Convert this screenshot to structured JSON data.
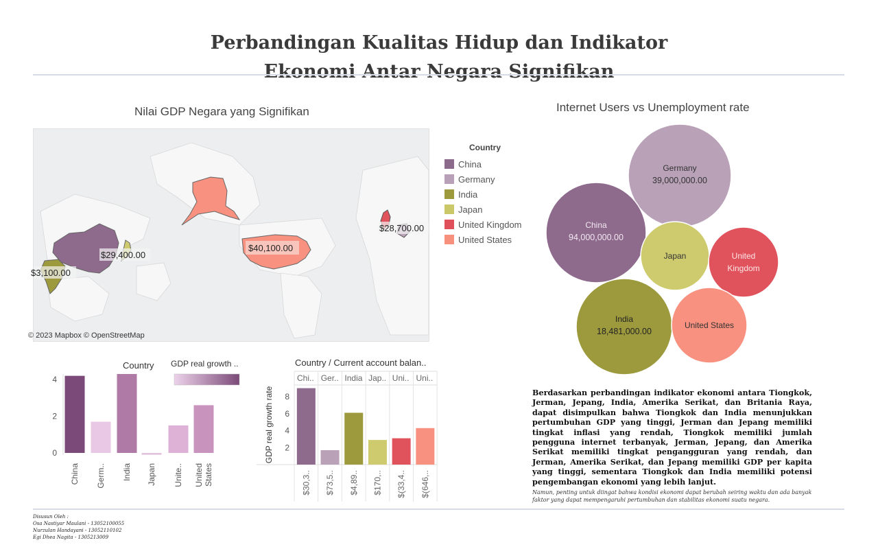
{
  "header": {
    "title_line1": "Perbandingan Kualitas Hidup dan Indikator",
    "title_line2": "Ekonomi Antar Negara Signifikan"
  },
  "map": {
    "title": "Nilai GDP Negara yang Signifikan",
    "attribution": "© 2023 Mapbox © OpenStreetMap",
    "labels": {
      "us": "$40,100.00",
      "uk": "$28,700.00",
      "japan": "$29,400.00",
      "india": "$3,100.00"
    }
  },
  "legend": {
    "title": "Country",
    "items": [
      {
        "label": "China",
        "color": "#8b6a8b"
      },
      {
        "label": "Germany",
        "color": "#b8a0b8"
      },
      {
        "label": "India",
        "color": "#9c9a3c"
      },
      {
        "label": "Japan",
        "color": "#cbc86a"
      },
      {
        "label": "United Kingdom",
        "color": "#e0505a"
      },
      {
        "label": "United States",
        "color": "#f8907e"
      }
    ]
  },
  "bubble_chart": {
    "title": "Internet Users vs Unemployment rate",
    "bubbles": [
      {
        "name": "Germany",
        "value": "39,000,000.00",
        "color": "#b9a1b8",
        "text_color": "#333"
      },
      {
        "name": "China",
        "value": "94,000,000.00",
        "color": "#8e6a8c",
        "text_color": "#f2e8f2"
      },
      {
        "name": "Japan",
        "value": "",
        "color": "#cecb6e",
        "text_color": "#333"
      },
      {
        "name": "United Kingdom",
        "label_line1": "United",
        "label_line2": "Kingdom",
        "value": "",
        "color": "#e0525c",
        "text_color": "#fde6e6"
      },
      {
        "name": "India",
        "value": "18,481,000.00",
        "color": "#9d9a3d",
        "text_color": "#222"
      },
      {
        "name": "United States",
        "value": "",
        "color": "#f8917f",
        "text_color": "#333"
      }
    ]
  },
  "bar_chart_left": {
    "legend_country": "Country",
    "legend_gdp": "GDP real growth ..",
    "y_ticks": [
      "4",
      "2",
      "0"
    ],
    "categories": [
      "China",
      "Germ..",
      "India",
      "Japan",
      "Unite..",
      "United States"
    ],
    "category_lines": [
      [
        "China"
      ],
      [
        "Germ.."
      ],
      [
        "India"
      ],
      [
        "Japan"
      ],
      [
        "Unite.."
      ],
      [
        "United",
        "States"
      ]
    ],
    "colors": [
      "#7b4a78",
      "#e8c8e4",
      "#b07aa6",
      "#e2c4de",
      "#ddb2d6",
      "#c894be"
    ]
  },
  "bar_chart_right": {
    "header": "Country  /  Current account balan..",
    "col_headers": [
      "Chi..",
      "Ger..",
      "India",
      "Jap..",
      "Uni..",
      "Uni.."
    ],
    "ylabel": "GDP real growth rate",
    "y_ticks": [
      "8",
      "6",
      "4",
      "2"
    ],
    "bottom_labels": [
      "$30,3..",
      "$73,5..",
      "$4,89..",
      "$170,..",
      "$(33,4..",
      "$(646,.."
    ],
    "colors": [
      "#8e6a8c",
      "#b9a1b8",
      "#9d9a3d",
      "#cecb6e",
      "#e0525c",
      "#f8917f"
    ]
  },
  "chart_data": [
    {
      "type": "bar",
      "categories": [
        "China",
        "Germany",
        "India",
        "Japan",
        "United Kingdom",
        "United States"
      ],
      "values": [
        4.2,
        1.7,
        4.3,
        -0.1,
        1.5,
        2.6
      ],
      "ylim": [
        -0.2,
        4.5
      ]
    },
    {
      "type": "bar",
      "categories": [
        "China",
        "Germany",
        "India",
        "Japan",
        "United Kingdom",
        "United States"
      ],
      "values": [
        9.0,
        1.7,
        6.1,
        2.9,
        3.1,
        4.3
      ],
      "ylabel": "GDP real growth rate",
      "ylim": [
        0,
        9.5
      ]
    }
  ],
  "summary": {
    "paragraph": "Berdasarkan perbandingan indikator ekonomi antara Tiongkok, Jerman, Jepang, India, Amerika Serikat, dan Britania Raya, dapat disimpulkan bahwa Tiongkok dan India menunjukkan pertumbuhan GDP yang tinggi, Jerman dan Jepang memiliki tingkat inflasi yang rendah, Tiongkok memiliki jumlah pengguna internet terbanyak, Jerman, Jepang, dan Amerika Serikat memiliki tingkat pengangguran yang rendah, dan Jerman, Amerika Serikat, dan Jepang memiliki GDP per kapita yang tinggi, sementara Tiongkok dan India memiliki potensi pengembangan ekonomi yang lebih lanjut.",
    "note": "Namun, penting untuk diingat bahwa kondisi ekonomi dapat berubah seiring waktu dan ada banyak faktor yang dapat mempengaruhi pertumbuhan dan stabilitas ekonomi suatu negara."
  },
  "credits": {
    "heading": "Disusun Oleh :",
    "lines": [
      "Osa Nastiyar Maulani - 13052100055",
      "Nurzulan Handayani - 13052110102",
      "Egi Dhea Nagita - 1305213009"
    ]
  }
}
